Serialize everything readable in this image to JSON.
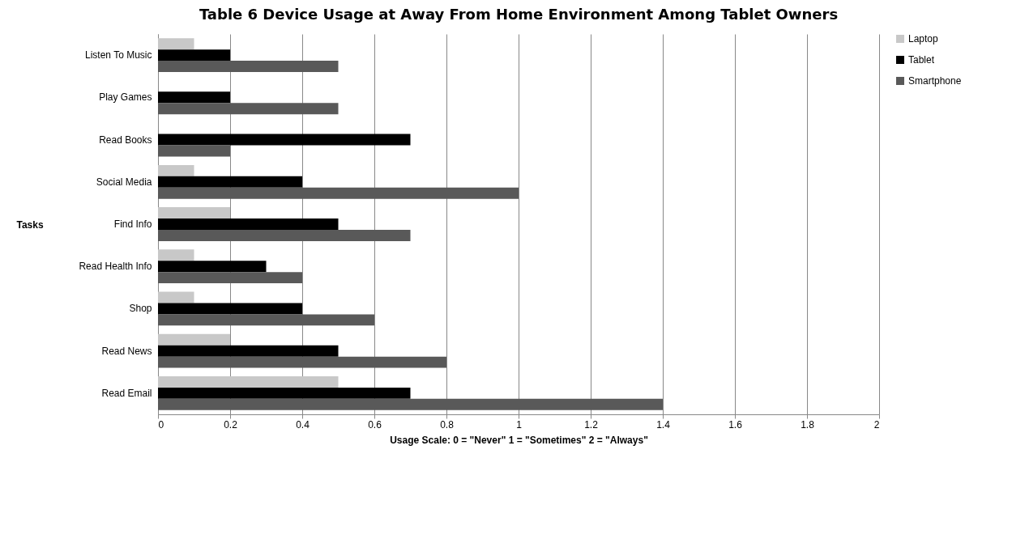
{
  "chart_data": {
    "type": "bar",
    "orientation": "horizontal",
    "title": "Table 6 Device Usage at Away From Home Environment Among Tablet Owners",
    "xlabel": "Usage Scale: 0 = \"Never\"  1 = \"Sometimes\"  2 = \"Always\"",
    "ylabel": "Tasks",
    "categories": [
      "Listen To Music",
      "Play Games",
      "Read Books",
      "Social Media",
      "Find Info",
      "Read Health Info",
      "Shop",
      "Read News",
      "Read Email"
    ],
    "series": [
      {
        "name": "Laptop",
        "color": "#c8c8c8",
        "values": [
          0.1,
          0,
          0,
          0.1,
          0.2,
          0.1,
          0.1,
          0.2,
          0.5
        ]
      },
      {
        "name": "Tablet",
        "color": "#000000",
        "values": [
          0.2,
          0.2,
          0.7,
          0.4,
          0.5,
          0.3,
          0.4,
          0.5,
          0.7
        ]
      },
      {
        "name": "Smartphone",
        "color": "#595959",
        "values": [
          0.5,
          0.5,
          0.2,
          1.0,
          0.7,
          0.4,
          0.6,
          0.8,
          1.4
        ]
      }
    ],
    "xlim": [
      0,
      2
    ],
    "xticks": [
      0,
      0.2,
      0.4,
      0.6,
      0.8,
      1,
      1.2,
      1.4,
      1.6,
      1.8,
      2
    ],
    "grid": "x",
    "legend": "right"
  }
}
